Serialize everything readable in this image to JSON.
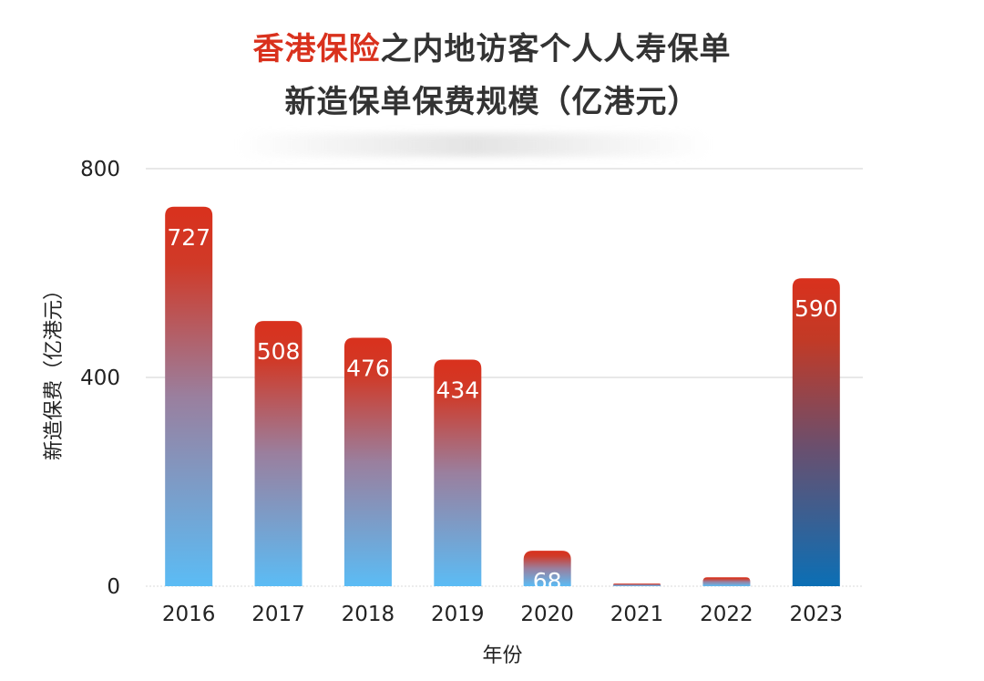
{
  "title": {
    "line1_highlight": "香港保险",
    "line1_rest": "之内地访客个人人寿保单",
    "line2": "新造保单保费规模（亿港元）"
  },
  "chart_data": {
    "type": "bar",
    "categories": [
      "2016",
      "2017",
      "2018",
      "2019",
      "2020",
      "2021",
      "2022",
      "2023"
    ],
    "values": [
      727,
      508,
      476,
      434,
      68,
      5,
      17,
      590
    ],
    "data_labels": [
      "727",
      "508",
      "476",
      "434",
      "68",
      "",
      "",
      "590"
    ],
    "xlabel": "年份",
    "ylabel": "新造保费（亿港元）",
    "ylim": [
      0,
      800
    ],
    "yticks": [
      0,
      400,
      800
    ],
    "grid": true,
    "colors": {
      "bar_top": "#d9311d",
      "bar_bottom_light": "#5bbcf5",
      "bar_bottom_dark_2023": "#0b6fb5",
      "gridline": "#d9d9d9",
      "title_highlight": "#d9311d"
    }
  }
}
